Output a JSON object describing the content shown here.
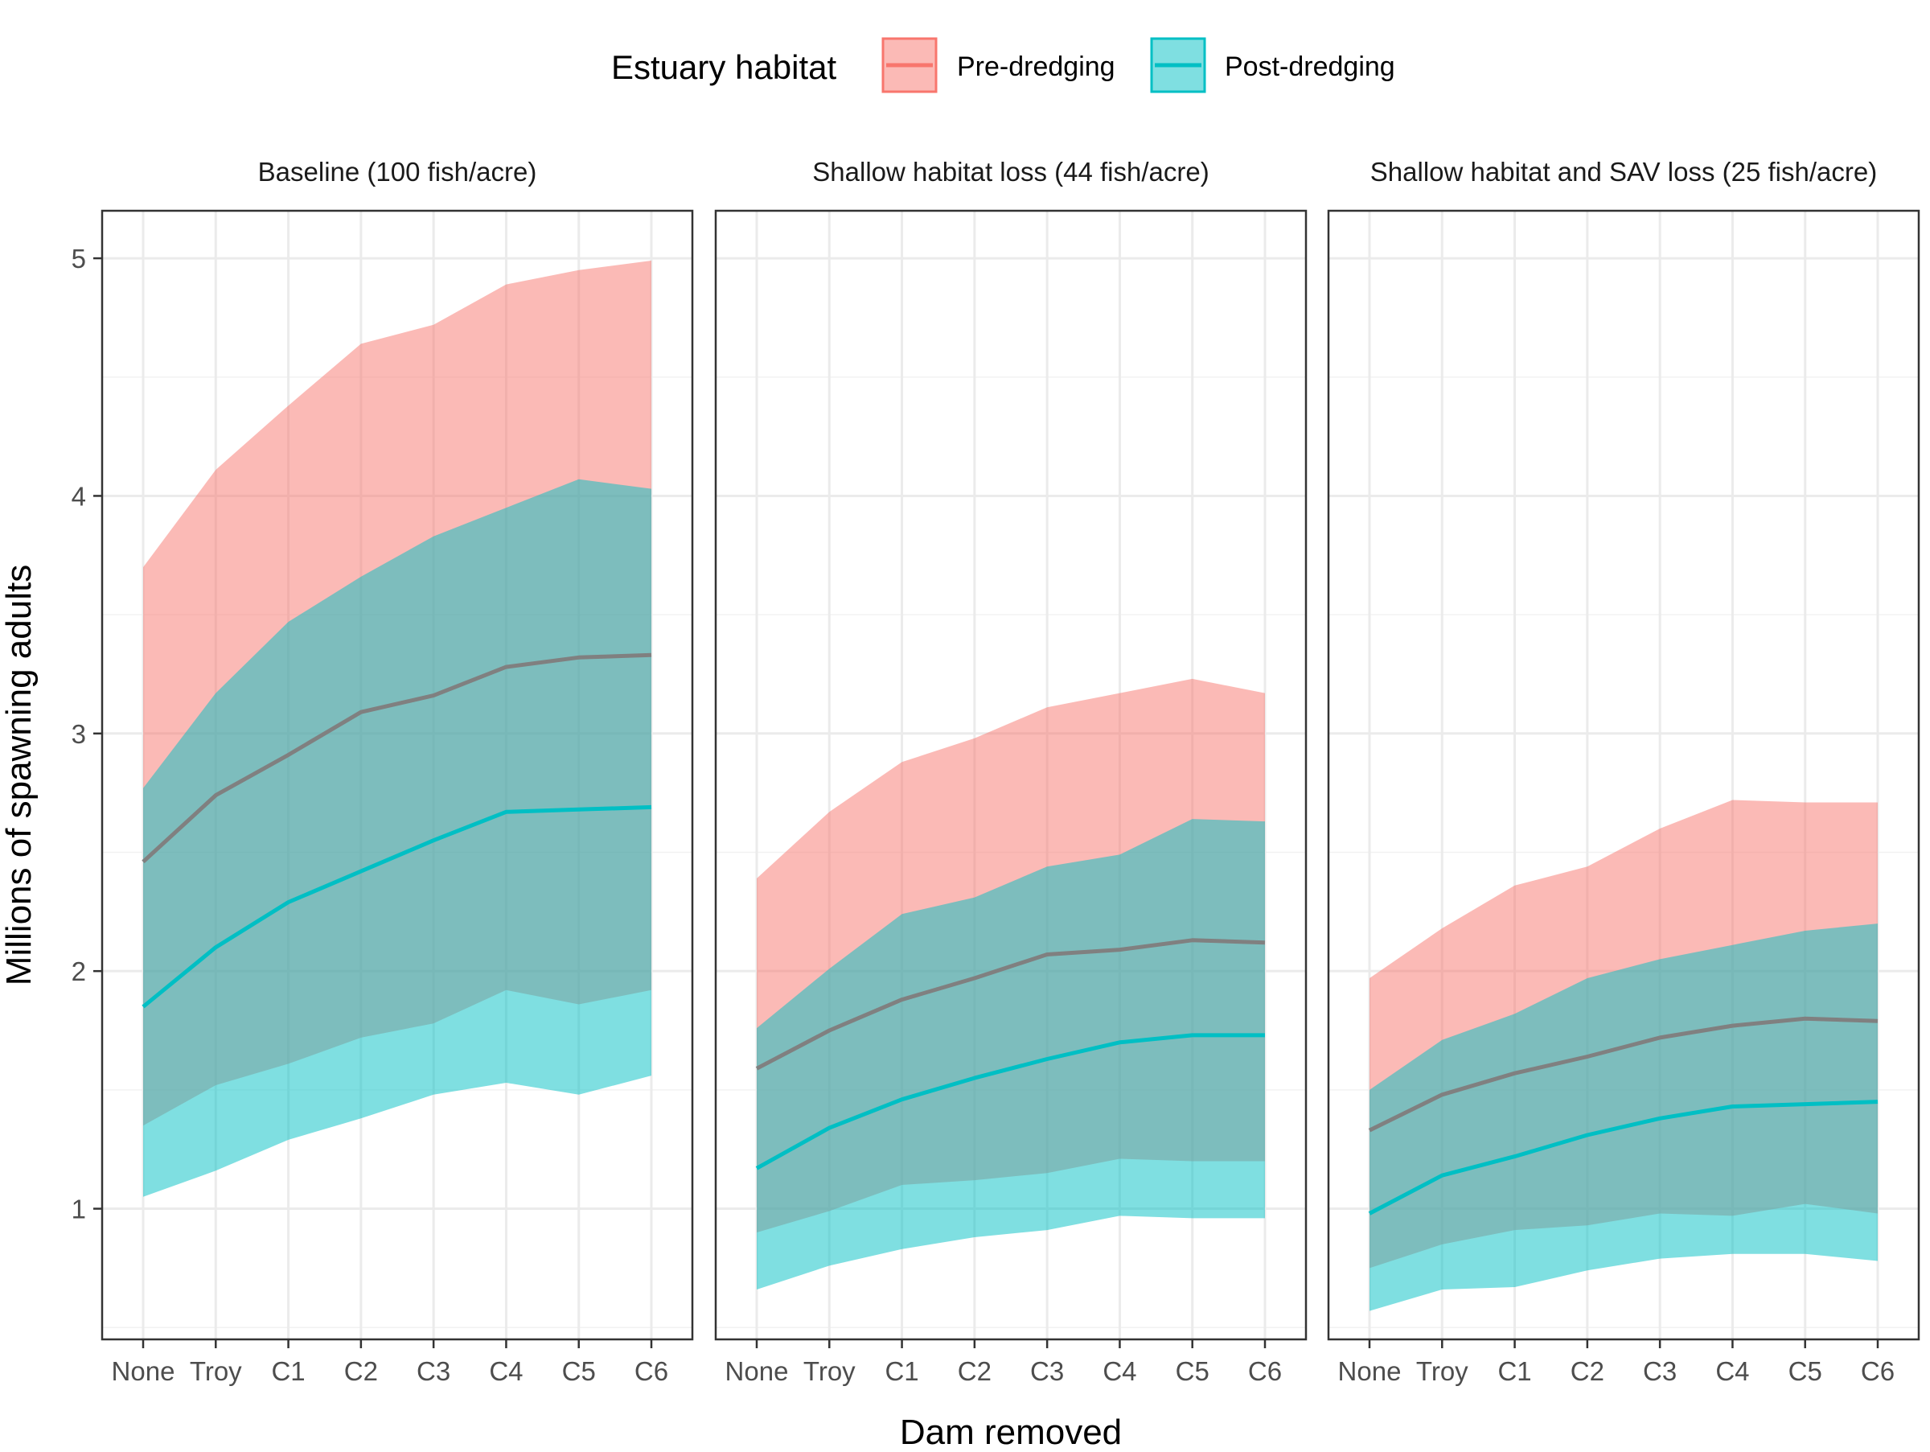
{
  "chart_data": {
    "type": "area",
    "xlabel": "Dam removed",
    "ylabel": "Millions of spawning adults",
    "categories": [
      "None",
      "Troy",
      "C1",
      "C2",
      "C3",
      "C4",
      "C5",
      "C6"
    ],
    "ylim": [
      0.45,
      5.2
    ],
    "yticks": [
      1,
      2,
      3,
      4,
      5
    ],
    "grid": true,
    "legend": {
      "title": "Estuary habitat",
      "position": "top",
      "entries": [
        "Pre-dredging",
        "Post-dredging"
      ]
    },
    "series_styles": {
      "Pre-dredging": {
        "band_color": "#F8766D",
        "line_color": "#F8766D"
      },
      "Post-dredging": {
        "band_color": "#00BFC4",
        "line_color": "#00BFC4"
      }
    },
    "overlap_line_color": "#808080",
    "panels": [
      {
        "title": "Baseline (100 fish/acre)",
        "series": [
          {
            "name": "Pre-dredging",
            "mean": [
              2.46,
              2.74,
              2.91,
              3.09,
              3.16,
              3.28,
              3.32,
              3.33
            ],
            "lower": [
              1.35,
              1.52,
              1.61,
              1.72,
              1.78,
              1.92,
              1.86,
              1.92
            ],
            "upper": [
              3.7,
              4.11,
              4.38,
              4.64,
              4.72,
              4.89,
              4.95,
              4.99
            ]
          },
          {
            "name": "Post-dredging",
            "mean": [
              1.85,
              2.1,
              2.29,
              2.42,
              2.55,
              2.67,
              2.68,
              2.69
            ],
            "lower": [
              1.05,
              1.16,
              1.29,
              1.38,
              1.48,
              1.53,
              1.48,
              1.56
            ],
            "upper": [
              2.77,
              3.17,
              3.47,
              3.66,
              3.83,
              3.95,
              4.07,
              4.03
            ]
          }
        ]
      },
      {
        "title": "Shallow habitat loss (44 fish/acre)",
        "series": [
          {
            "name": "Pre-dredging",
            "mean": [
              1.59,
              1.75,
              1.88,
              1.97,
              2.07,
              2.09,
              2.13,
              2.12
            ],
            "lower": [
              0.9,
              0.99,
              1.1,
              1.12,
              1.15,
              1.21,
              1.2,
              1.2
            ],
            "upper": [
              2.39,
              2.67,
              2.88,
              2.98,
              3.11,
              3.17,
              3.23,
              3.17
            ]
          },
          {
            "name": "Post-dredging",
            "mean": [
              1.17,
              1.34,
              1.46,
              1.55,
              1.63,
              1.7,
              1.73,
              1.73
            ],
            "lower": [
              0.66,
              0.76,
              0.83,
              0.88,
              0.91,
              0.97,
              0.96,
              0.96
            ],
            "upper": [
              1.76,
              2.01,
              2.24,
              2.31,
              2.44,
              2.49,
              2.64,
              2.63
            ]
          }
        ]
      },
      {
        "title": "Shallow habitat and SAV loss (25 fish/acre)",
        "series": [
          {
            "name": "Pre-dredging",
            "mean": [
              1.33,
              1.48,
              1.57,
              1.64,
              1.72,
              1.77,
              1.8,
              1.79
            ],
            "lower": [
              0.75,
              0.85,
              0.91,
              0.93,
              0.98,
              0.97,
              1.02,
              0.98
            ],
            "upper": [
              1.97,
              2.18,
              2.36,
              2.44,
              2.6,
              2.72,
              2.71,
              2.71
            ]
          },
          {
            "name": "Post-dredging",
            "mean": [
              0.98,
              1.14,
              1.22,
              1.31,
              1.38,
              1.43,
              1.44,
              1.45
            ],
            "lower": [
              0.57,
              0.66,
              0.67,
              0.74,
              0.79,
              0.81,
              0.81,
              0.78
            ],
            "upper": [
              1.5,
              1.71,
              1.82,
              1.97,
              2.05,
              2.11,
              2.17,
              2.2
            ]
          }
        ]
      }
    ]
  }
}
